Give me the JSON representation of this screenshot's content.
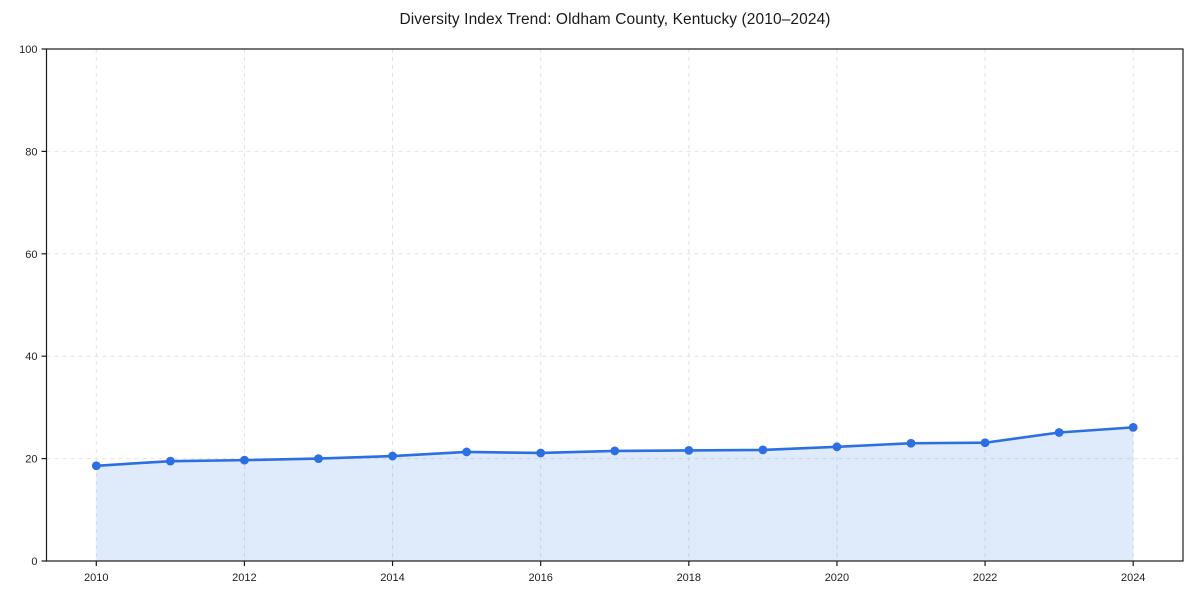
{
  "chart_data": {
    "type": "line",
    "title": "Diversity Index Trend: Oldham County, Kentucky (2010–2024)",
    "x": [
      2010,
      2011,
      2012,
      2013,
      2014,
      2015,
      2016,
      2017,
      2018,
      2019,
      2020,
      2021,
      2022,
      2023,
      2024
    ],
    "values": [
      18.6,
      19.5,
      19.7,
      20.0,
      20.5,
      21.3,
      21.1,
      21.5,
      21.6,
      21.7,
      22.3,
      23.0,
      23.1,
      25.1,
      26.1
    ],
    "xlabel": "",
    "ylabel": "",
    "ylim": [
      0,
      100
    ],
    "yticks": [
      0,
      20,
      40,
      60,
      80,
      100
    ],
    "xticks": [
      2010,
      2012,
      2014,
      2016,
      2018,
      2020,
      2022,
      2024
    ],
    "grid": true,
    "grid_style": "dashed",
    "legend": "none",
    "marker": "circle",
    "area_fill": true,
    "colors": {
      "line": "#2b6fe2",
      "marker": "#2b6fe2",
      "fill": "#2b6fe2",
      "fill_opacity": 0.15,
      "grid": "#e2e2e2",
      "spine": "#1a1a1a",
      "tick": "#1a1a1a",
      "tick_label": "#1f1f1f",
      "title": "#1a1a1a",
      "background": "#ffffff"
    }
  }
}
